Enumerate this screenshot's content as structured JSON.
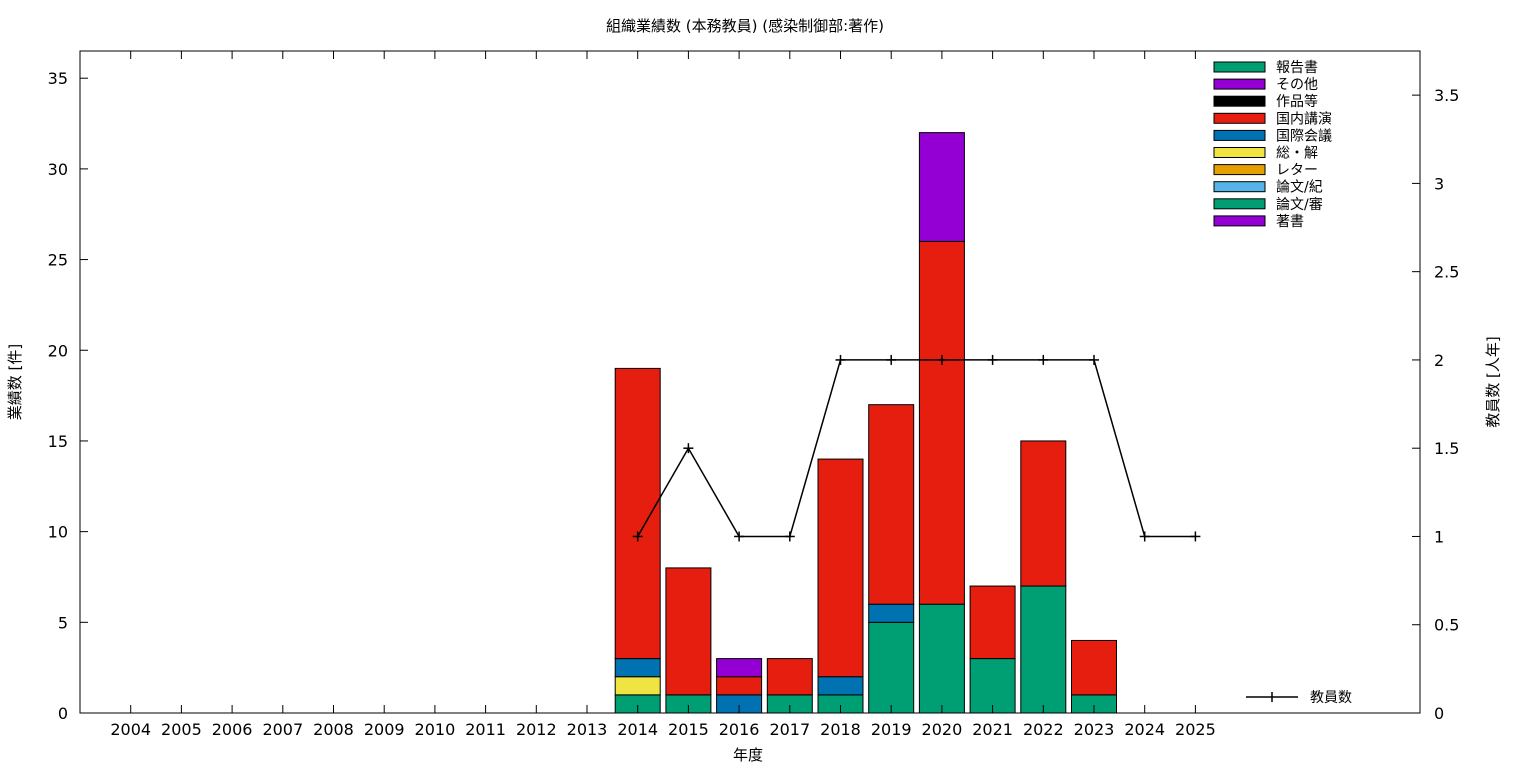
{
  "chart_data": {
    "type": "bar",
    "stacked": true,
    "title": "組織業績数 (本務教員) (感染制御部:著作)",
    "xlabel": "年度",
    "ylabel": "業績数 [件]",
    "y2label": "教員数 [人年]",
    "ylim": [
      0,
      36.5
    ],
    "y2lim": [
      0,
      3.75
    ],
    "yticks": [
      0,
      5,
      10,
      15,
      20,
      25,
      30,
      35
    ],
    "y2ticks": [
      "0",
      "0.5",
      "1",
      "1.5",
      "2",
      "2.5",
      "3",
      "3.5"
    ],
    "y2tick_values": [
      0,
      0.5,
      1,
      1.5,
      2,
      2.5,
      3,
      3.5
    ],
    "categories": [
      "2004",
      "2005",
      "2006",
      "2007",
      "2008",
      "2009",
      "2010",
      "2011",
      "2012",
      "2013",
      "2014",
      "2015",
      "2016",
      "2017",
      "2018",
      "2019",
      "2020",
      "2021",
      "2022",
      "2023",
      "2024",
      "2025"
    ],
    "series": [
      {
        "name": "論文/審",
        "color": "#009e73",
        "values": [
          0,
          0,
          0,
          0,
          0,
          0,
          0,
          0,
          0,
          0,
          1,
          1,
          0,
          1,
          1,
          5,
          6,
          3,
          7,
          1,
          0,
          0
        ]
      },
      {
        "name": "論文/紀",
        "color": "#56b4e9",
        "values": [
          0,
          0,
          0,
          0,
          0,
          0,
          0,
          0,
          0,
          0,
          0,
          0,
          0,
          0,
          0,
          0,
          0,
          0,
          0,
          0,
          0,
          0
        ]
      },
      {
        "name": "レター",
        "color": "#e69f00",
        "values": [
          0,
          0,
          0,
          0,
          0,
          0,
          0,
          0,
          0,
          0,
          0,
          0,
          0,
          0,
          0,
          0,
          0,
          0,
          0,
          0,
          0,
          0
        ]
      },
      {
        "name": "総・解",
        "color": "#f0e442",
        "values": [
          0,
          0,
          0,
          0,
          0,
          0,
          0,
          0,
          0,
          0,
          1,
          0,
          0,
          0,
          0,
          0,
          0,
          0,
          0,
          0,
          0,
          0
        ]
      },
      {
        "name": "国際会議",
        "color": "#0072b2",
        "values": [
          0,
          0,
          0,
          0,
          0,
          0,
          0,
          0,
          0,
          0,
          1,
          0,
          1,
          0,
          1,
          1,
          0,
          0,
          0,
          0,
          0,
          0
        ]
      },
      {
        "name": "国内講演",
        "color": "#e51e10",
        "values": [
          0,
          0,
          0,
          0,
          0,
          0,
          0,
          0,
          0,
          0,
          16,
          7,
          1,
          2,
          12,
          11,
          20,
          4,
          8,
          3,
          0,
          0
        ]
      },
      {
        "name": "作品等",
        "color": "#000000",
        "values": [
          0,
          0,
          0,
          0,
          0,
          0,
          0,
          0,
          0,
          0,
          0,
          0,
          0,
          0,
          0,
          0,
          0,
          0,
          0,
          0,
          0,
          0
        ]
      },
      {
        "name": "その他",
        "color": "#9400d3",
        "values": [
          0,
          0,
          0,
          0,
          0,
          0,
          0,
          0,
          0,
          0,
          0,
          0,
          0,
          0,
          0,
          0,
          6,
          0,
          0,
          0,
          0,
          0
        ]
      },
      {
        "name": "報告書",
        "color": "#009e73",
        "values": [
          0,
          0,
          0,
          0,
          0,
          0,
          0,
          0,
          0,
          0,
          0,
          0,
          0,
          0,
          0,
          0,
          0,
          0,
          0,
          0,
          0,
          0
        ]
      },
      {
        "name": "著書",
        "color": "#9400d3",
        "values": [
          0,
          0,
          0,
          0,
          0,
          0,
          0,
          0,
          0,
          0,
          0,
          0,
          1,
          0,
          0,
          0,
          0,
          0,
          0,
          0,
          0,
          0
        ]
      }
    ],
    "legend_order": [
      "報告書",
      "その他",
      "作品等",
      "国内講演",
      "国際会議",
      "総・解",
      "レター",
      "論文/紀",
      "論文/審",
      "著書"
    ],
    "line_series": {
      "name": "教員数",
      "axis": "y2",
      "color": "#000000",
      "x": [
        "2014",
        "2015",
        "2016",
        "2017",
        "2018",
        "2019",
        "2020",
        "2021",
        "2022",
        "2023",
        "2024",
        "2025"
      ],
      "values": [
        1,
        1.5,
        1,
        1,
        2,
        2,
        2,
        2,
        2,
        2,
        1,
        1
      ]
    },
    "legend_position": "top-right",
    "grid": false
  }
}
